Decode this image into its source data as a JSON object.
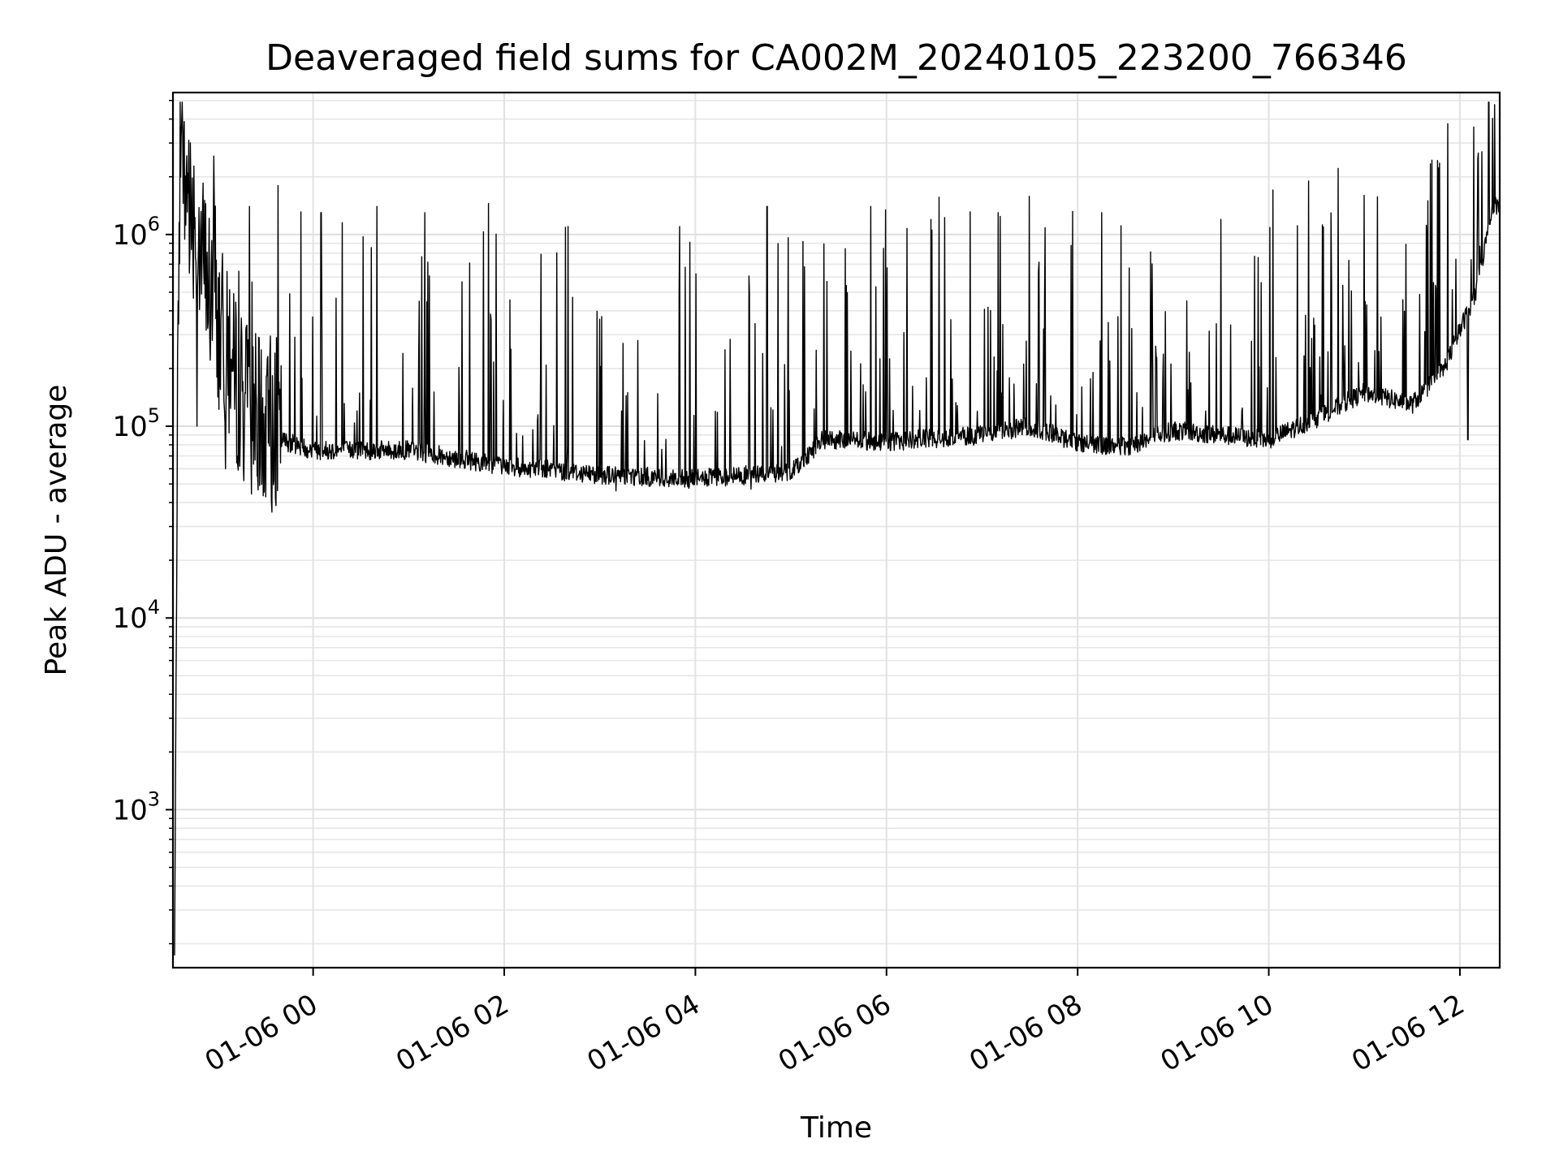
{
  "chart_data": {
    "type": "line",
    "title": "Deaveraged field sums for CA002M_20240105_223200_766346",
    "xlabel": "Time",
    "ylabel": "Peak ADU - average",
    "yscale": "log",
    "ylim": [
      150,
      5500000
    ],
    "xlim": [
      "2024-01-05 22:32",
      "2024-01-06 12:25"
    ],
    "grid": true,
    "x_ticks": [
      {
        "value": "2024-01-06 00:00",
        "label": "01-06 00"
      },
      {
        "value": "2024-01-06 02:00",
        "label": "01-06 02"
      },
      {
        "value": "2024-01-06 04:00",
        "label": "01-06 04"
      },
      {
        "value": "2024-01-06 06:00",
        "label": "01-06 06"
      },
      {
        "value": "2024-01-06 08:00",
        "label": "01-06 08"
      },
      {
        "value": "2024-01-06 10:00",
        "label": "01-06 10"
      },
      {
        "value": "2024-01-06 12:00",
        "label": "01-06 12"
      }
    ],
    "y_ticks": [
      {
        "value": 1000,
        "base": "10",
        "exp": "3"
      },
      {
        "value": 10000,
        "base": "10",
        "exp": "4"
      },
      {
        "value": 100000,
        "base": "10",
        "exp": "5"
      },
      {
        "value": 1000000,
        "base": "10",
        "exp": "6"
      }
    ],
    "series": [
      {
        "color": "#000000",
        "baseline": [
          {
            "x": "2024-01-05 22:33",
            "y": 170
          },
          {
            "x": "2024-01-05 22:35",
            "y": 150000
          },
          {
            "x": "2024-01-05 22:37",
            "y": 2000000
          },
          {
            "x": "2024-01-05 22:45",
            "y": 1300000
          },
          {
            "x": "2024-01-05 22:55",
            "y": 500000
          },
          {
            "x": "2024-01-05 23:10",
            "y": 180000
          },
          {
            "x": "2024-01-05 23:30",
            "y": 90000
          },
          {
            "x": "2024-01-06 00:00",
            "y": 75000
          },
          {
            "x": "2024-01-06 01:00",
            "y": 75000
          },
          {
            "x": "2024-01-06 02:00",
            "y": 62000
          },
          {
            "x": "2024-01-06 03:00",
            "y": 56000
          },
          {
            "x": "2024-01-06 04:00",
            "y": 53000
          },
          {
            "x": "2024-01-06 05:00",
            "y": 58000
          },
          {
            "x": "2024-01-06 05:20",
            "y": 85000
          },
          {
            "x": "2024-01-06 06:00",
            "y": 83000
          },
          {
            "x": "2024-01-06 07:00",
            "y": 90000
          },
          {
            "x": "2024-01-06 07:30",
            "y": 100000
          },
          {
            "x": "2024-01-06 08:00",
            "y": 82000
          },
          {
            "x": "2024-01-06 08:30",
            "y": 78000
          },
          {
            "x": "2024-01-06 09:00",
            "y": 95000
          },
          {
            "x": "2024-01-06 10:00",
            "y": 85000
          },
          {
            "x": "2024-01-06 10:30",
            "y": 110000
          },
          {
            "x": "2024-01-06 11:00",
            "y": 150000
          },
          {
            "x": "2024-01-06 11:30",
            "y": 130000
          },
          {
            "x": "2024-01-06 11:50",
            "y": 200000
          },
          {
            "x": "2024-01-06 12:10",
            "y": 500000
          },
          {
            "x": "2024-01-06 12:20",
            "y": 1300000
          },
          {
            "x": "2024-01-06 12:25",
            "y": 1500000
          }
        ],
        "spikes": [
          {
            "x": "2024-01-05 22:38",
            "y": 3400000
          },
          {
            "x": "2024-01-05 22:42",
            "y": 3100000
          },
          {
            "x": "2024-01-05 22:58",
            "y": 1500000
          },
          {
            "x": "2024-01-05 23:20",
            "y": 1400000
          },
          {
            "x": "2024-01-05 23:38",
            "y": 1800000
          },
          {
            "x": "2024-01-06 00:05",
            "y": 1300000
          },
          {
            "x": "2024-01-06 00:40",
            "y": 1400000
          },
          {
            "x": "2024-01-06 01:10",
            "y": 1300000
          },
          {
            "x": "2024-01-06 01:50",
            "y": 1450000
          },
          {
            "x": "2024-01-06 02:40",
            "y": 1100000
          },
          {
            "x": "2024-01-06 03:50",
            "y": 1100000
          },
          {
            "x": "2024-01-06 04:45",
            "y": 1400000
          },
          {
            "x": "2024-01-06 05:50",
            "y": 1400000
          },
          {
            "x": "2024-01-06 07:10",
            "y": 1300000
          },
          {
            "x": "2024-01-06 08:15",
            "y": 1300000
          },
          {
            "x": "2024-01-06 09:30",
            "y": 1200000
          },
          {
            "x": "2024-01-06 10:25",
            "y": 1900000
          },
          {
            "x": "2024-01-06 11:00",
            "y": 1600000
          },
          {
            "x": "2024-01-06 11:40",
            "y": 1500000
          }
        ],
        "dips": [
          {
            "x": "2024-01-05 22:47",
            "y": 100000
          },
          {
            "x": "2024-01-05 23:05",
            "y": 60000
          },
          {
            "x": "2024-01-05 23:25",
            "y": 55000
          },
          {
            "x": "2024-01-06 03:10",
            "y": 46000
          },
          {
            "x": "2024-01-06 04:35",
            "y": 47000
          },
          {
            "x": "2024-01-06 12:05",
            "y": 85000
          }
        ]
      }
    ]
  }
}
